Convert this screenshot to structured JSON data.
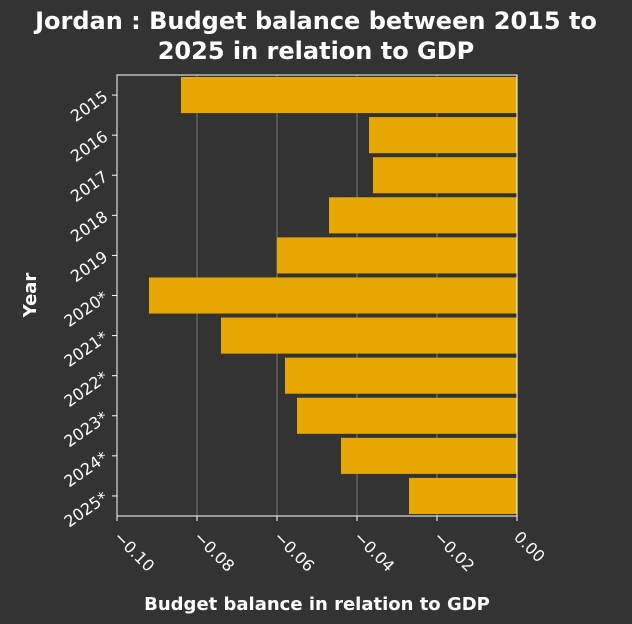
{
  "chart_data": {
    "type": "bar",
    "orientation": "horizontal",
    "title_lines": [
      "Jordan : Budget balance between 2015 to",
      "2025 in relation to GDP"
    ],
    "xlabel": "Budget balance in relation to GDP",
    "ylabel": "Year",
    "categories": [
      "2015",
      "2016",
      "2017",
      "2018",
      "2019",
      "2020*",
      "2021*",
      "2022*",
      "2023*",
      "2024*",
      "2025*"
    ],
    "values": [
      -0.084,
      -0.037,
      -0.036,
      -0.047,
      -0.06,
      -0.092,
      -0.074,
      -0.058,
      -0.055,
      -0.044,
      -0.027
    ],
    "xlim": [
      -0.1,
      0.0
    ],
    "xticks": [
      -0.1,
      -0.08,
      -0.06,
      -0.04,
      -0.02,
      0.0
    ],
    "xtick_labels": [
      "−0.10",
      "−0.08",
      "−0.06",
      "−0.04",
      "−0.02",
      "0.00"
    ],
    "grid": "vertical",
    "colors": {
      "bar": "#e6a800",
      "background": "#333333",
      "text": "#ffffff",
      "grid": "#7a7a7a"
    }
  }
}
